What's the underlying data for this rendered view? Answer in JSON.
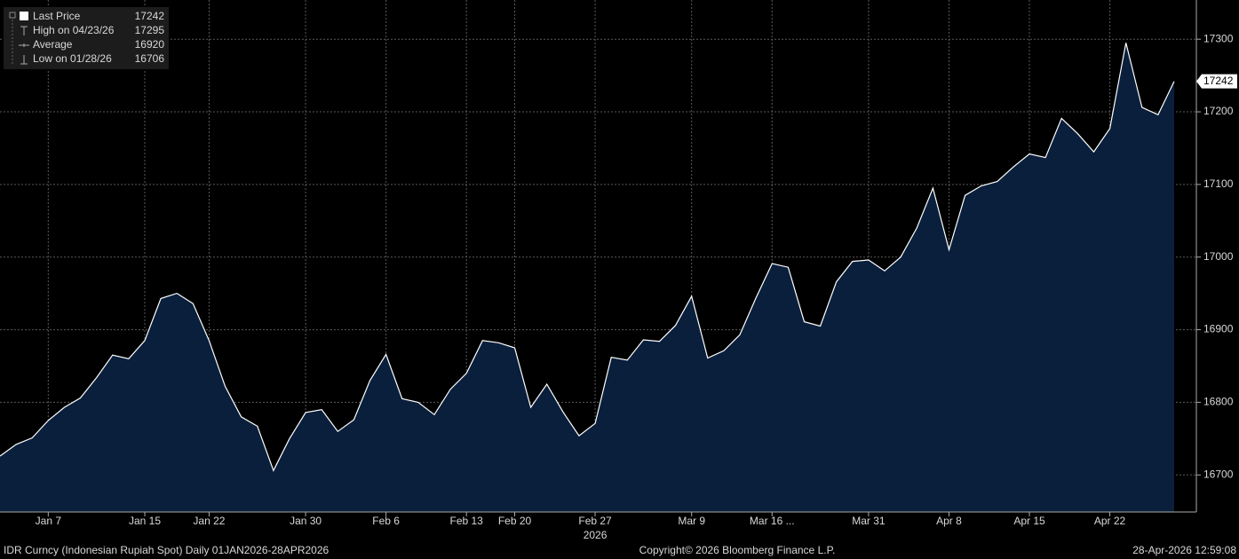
{
  "chart_data": {
    "type": "area",
    "categories": [
      null,
      null,
      null,
      "Jan 7",
      null,
      null,
      null,
      null,
      null,
      "Jan 15",
      null,
      null,
      null,
      "Jan 22",
      null,
      null,
      null,
      null,
      null,
      "Jan 30",
      null,
      null,
      null,
      null,
      "Feb 6",
      null,
      null,
      null,
      null,
      "Feb 13",
      null,
      null,
      "Feb 20",
      null,
      null,
      null,
      null,
      "Feb 27",
      null,
      null,
      null,
      null,
      null,
      "Mar 9",
      null,
      null,
      null,
      null,
      "Mar 16 ...",
      null,
      null,
      null,
      null,
      null,
      "Mar 31",
      null,
      null,
      null,
      null,
      "Apr 8",
      null,
      null,
      null,
      null,
      "Apr 15",
      null,
      null,
      null,
      null,
      "Apr 22",
      null,
      null,
      null,
      null
    ],
    "year_label": "2026",
    "series": [
      {
        "name": "Last Price",
        "color": "#ffffff",
        "fill": "#0a1f3c",
        "values": [
          16726,
          16742,
          16751,
          16775,
          16793,
          16806,
          16834,
          16865,
          16860,
          16885,
          16943,
          16950,
          16936,
          16885,
          16822,
          16780,
          16767,
          16706,
          16750,
          16786,
          16790,
          16760,
          16776,
          16830,
          16866,
          16805,
          16800,
          16783,
          16818,
          16840,
          16885,
          16882,
          16875,
          16793,
          16825,
          16787,
          16754,
          16771,
          16862,
          16858,
          16886,
          16884,
          16906,
          16946,
          16861,
          16871,
          16893,
          16944,
          16991,
          16986,
          16911,
          16905,
          16966,
          16994,
          16996,
          16981,
          17000,
          17040,
          17095,
          17010,
          17085,
          17098,
          17104,
          17124,
          17142,
          17137,
          17191,
          17170,
          17145,
          17177,
          17295,
          17206,
          17196,
          17242
        ]
      }
    ],
    "ylim": [
      16649,
      17354
    ],
    "yticks": [
      16700,
      16800,
      16900,
      17000,
      17100,
      17200,
      17300
    ],
    "grid": true,
    "legend": [
      {
        "label": "Last Price",
        "value": 17242
      },
      {
        "label": "High on 04/23/26",
        "value": 17295
      },
      {
        "label": "Average",
        "value": 16920
      },
      {
        "label": "Low on 01/28/26",
        "value": 16706
      }
    ],
    "footer": {
      "left": "IDR Curncy (Indonesian Rupiah Spot) Daily 01JAN2026-28APR2026",
      "center": "Copyright© 2026 Bloomberg Finance L.P.",
      "right": "28-Apr-2026 12:59:08"
    }
  }
}
